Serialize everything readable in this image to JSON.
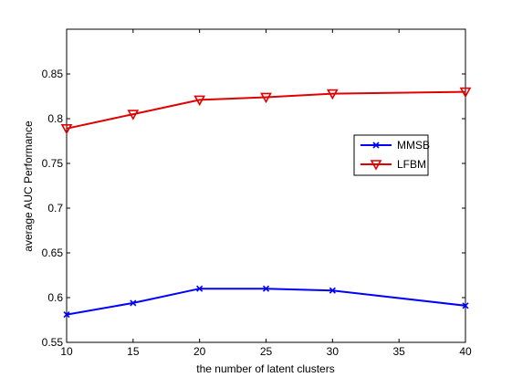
{
  "chart_data": {
    "type": "line",
    "title": "",
    "xlabel": "the number of latent clusters",
    "ylabel": "average AUC Performance",
    "x": [
      10,
      15,
      20,
      25,
      30,
      40
    ],
    "xlim": [
      10,
      40
    ],
    "ylim": [
      0.55,
      0.9
    ],
    "xticks": [
      "10",
      "15",
      "20",
      "25",
      "30",
      "35",
      "40"
    ],
    "yticks": [
      "0.55",
      "0.6",
      "0.65",
      "0.7",
      "0.75",
      "0.8",
      "0.85"
    ],
    "grid": false,
    "legend_position": "right",
    "series": [
      {
        "name": "MMSB",
        "color": "#0000ff",
        "marker": "x",
        "values": [
          0.581,
          0.594,
          0.61,
          0.61,
          0.608,
          0.591
        ]
      },
      {
        "name": "LFBM",
        "color": "#e00000",
        "marker": "triangle-down",
        "values": [
          0.789,
          0.805,
          0.821,
          0.824,
          0.828,
          0.83
        ]
      }
    ]
  }
}
